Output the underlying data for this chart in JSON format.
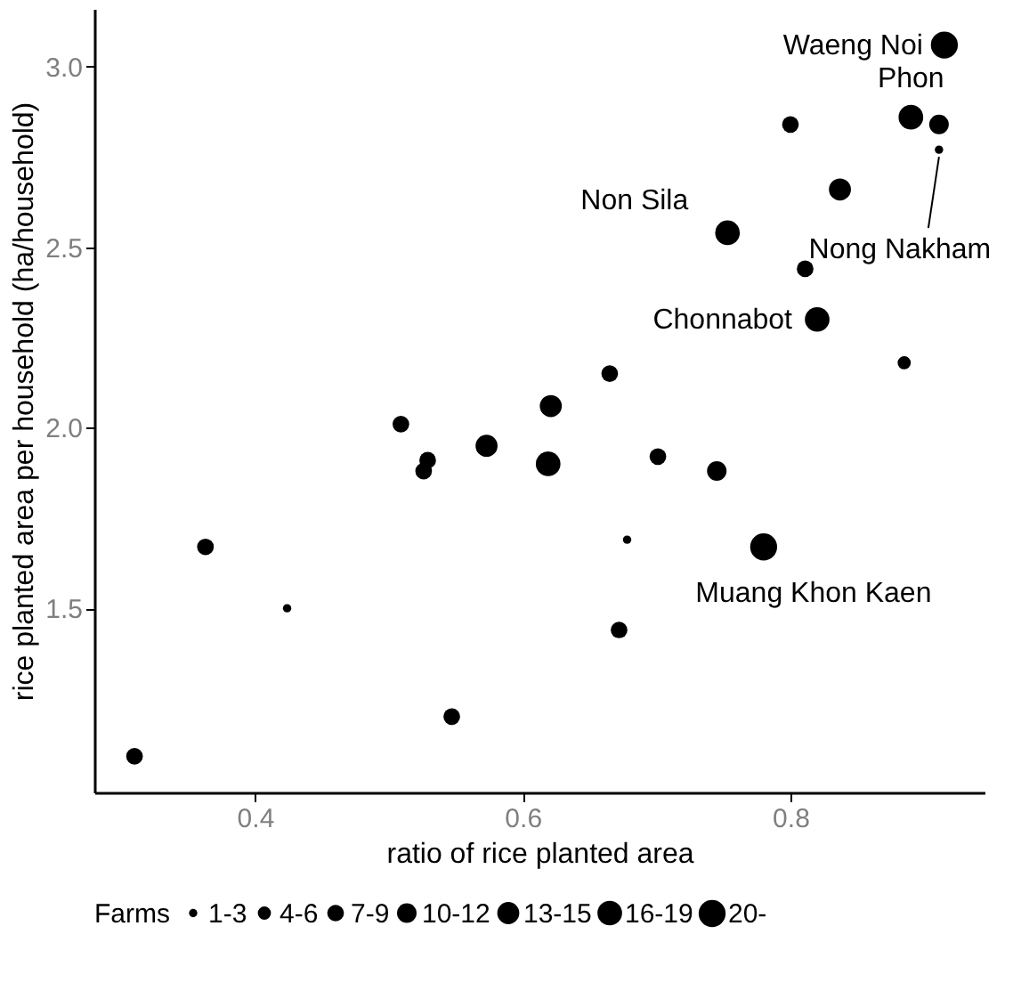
{
  "chart_data": {
    "type": "bubble",
    "xlabel": "ratio of rice planted area",
    "ylabel": "rice planted area per household (ha/household)",
    "legend_title": "Farms",
    "x": [
      0.915,
      0.89,
      0.911,
      0.8,
      0.911,
      0.837,
      0.753,
      0.811,
      0.82,
      0.885,
      0.665,
      0.621,
      0.509,
      0.573,
      0.529,
      0.526,
      0.619,
      0.701,
      0.745,
      0.363,
      0.678,
      0.78,
      0.424,
      0.672,
      0.547,
      0.31
    ],
    "values": [
      3.06,
      2.86,
      2.84,
      2.84,
      2.77,
      2.66,
      2.54,
      2.44,
      2.3,
      2.18,
      2.15,
      2.06,
      2.01,
      1.95,
      1.91,
      1.88,
      1.9,
      1.92,
      1.88,
      1.67,
      1.69,
      1.67,
      1.5,
      1.44,
      1.2,
      1.09
    ],
    "sizes": [
      21,
      17.5,
      11,
      8,
      2,
      14,
      17.5,
      8,
      17.5,
      5,
      8,
      14,
      8,
      14,
      8,
      8,
      17.5,
      8,
      11,
      8,
      2,
      21,
      2,
      8,
      8,
      8
    ],
    "size_legend": [
      {
        "value": 2,
        "label": "1-3"
      },
      {
        "value": 5,
        "label": "4-6"
      },
      {
        "value": 8,
        "label": "7-9"
      },
      {
        "value": 11,
        "label": "10-12"
      },
      {
        "value": 14,
        "label": "13-15"
      },
      {
        "value": 17.5,
        "label": "16-19"
      },
      {
        "value": 21,
        "label": "20-"
      }
    ],
    "color": "#000000",
    "xlim": [
      0.28,
      0.945
    ],
    "ylim": [
      0.99,
      3.16
    ],
    "xticks": [
      0.4,
      0.6,
      0.8
    ],
    "yticks": [
      1.5,
      {
        "value": 2,
        "label": "2.0"
      },
      2.5,
      {
        "value": 3,
        "label": "3.0"
      }
    ],
    "annotations": [
      {
        "text": "Waeng Noi",
        "x": 0.915,
        "y": 3.06
      },
      {
        "text": "Phon",
        "x": 0.89,
        "y": 2.86
      },
      {
        "text": "Non Sila",
        "x": 0.753,
        "y": 2.54
      },
      {
        "text": "Nong Nakham",
        "x": 0.911,
        "y": 2.77
      },
      {
        "text": "Chonnabot",
        "x": 0.82,
        "y": 2.3
      },
      {
        "text": "Muang Khon Kaen",
        "x": 0.78,
        "y": 1.67
      }
    ],
    "grid": false
  }
}
